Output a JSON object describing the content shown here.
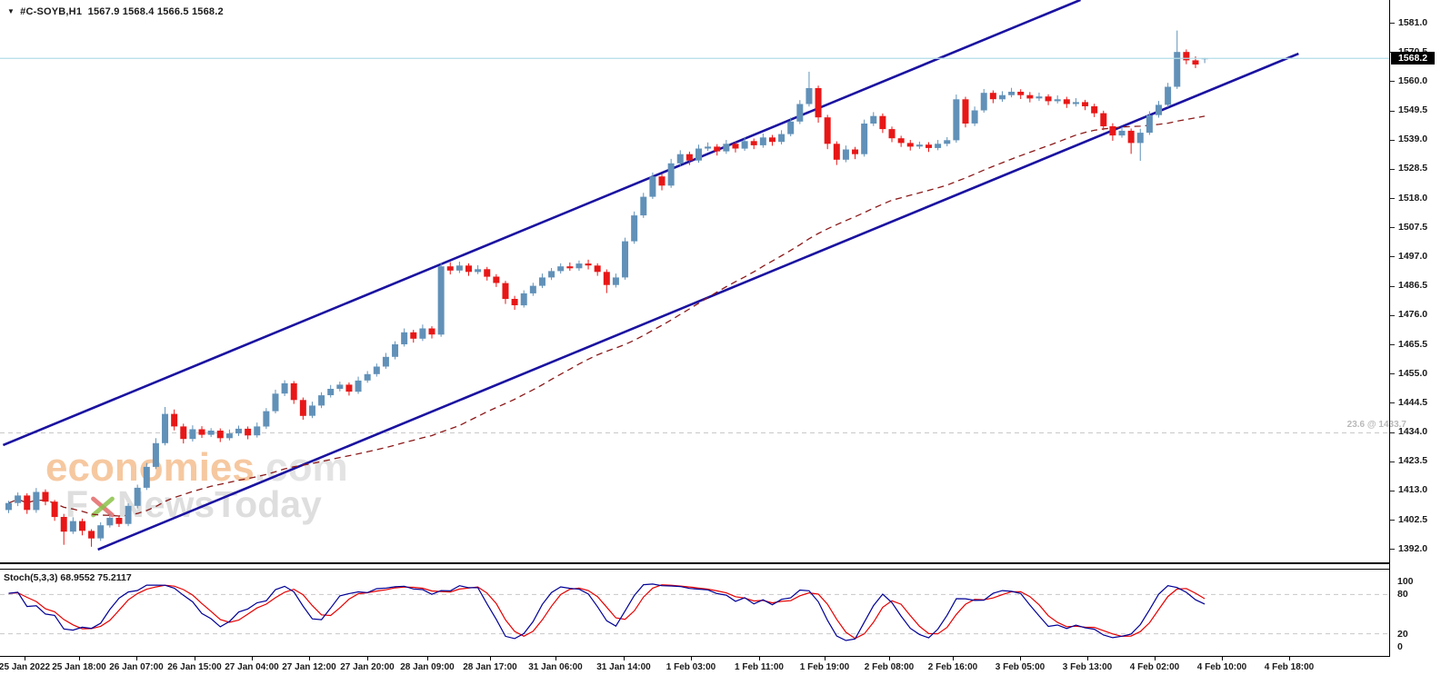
{
  "ui": {
    "quote": {
      "dropdown_icon": "▼",
      "symbol": "#C-SOYB,H1",
      "ohlc": "1567.9 1568.4 1566.5 1568.2"
    },
    "watermark": {
      "brand": "economies",
      "domain": ".com",
      "tagline_left": "F",
      "tagline_rest": "NewsToday"
    },
    "stoch_label": "Stoch(5,3,3) 68.9552 75.2117",
    "fib_label": "23.6 @ 1433.7",
    "current_price": "1568.2"
  },
  "colors": {
    "bull": "#6191b8",
    "bear": "#e81717",
    "channel": "#1a12a0",
    "ma": "#8b1a1a",
    "stoch_k": "#000096",
    "stoch_d": "#e60000",
    "current_line": "#b3dde8",
    "fib_line": "#c8c8c8",
    "axis_text": "#1a1a1a",
    "badge_bg": "#000000",
    "badge_text": "#ffffff"
  },
  "chart_data": {
    "type": "candlestick",
    "symbol": "#C-SOYB",
    "timeframe": "H1",
    "title": "#C-SOYB,H1 1567.9 1568.4 1566.5 1568.2",
    "last_quote": {
      "open": 1567.9,
      "high": 1568.4,
      "low": 1566.5,
      "close": 1568.2
    },
    "y_axis": {
      "min": 1392.0,
      "max": 1581.0,
      "tick_step": 10.5,
      "ticks": [
        1581.0,
        1570.5,
        1560.0,
        1549.5,
        1539.0,
        1528.5,
        1518.0,
        1507.5,
        1497.0,
        1486.5,
        1476.0,
        1465.5,
        1455.0,
        1444.5,
        1434.0,
        1423.5,
        1413.0,
        1402.5,
        1392.0
      ]
    },
    "x_axis": {
      "labels": [
        "25 Jan 2022",
        "25 Jan 18:00",
        "26 Jan 07:00",
        "26 Jan 15:00",
        "27 Jan 04:00",
        "27 Jan 12:00",
        "27 Jan 20:00",
        "28 Jan 09:00",
        "28 Jan 17:00",
        "31 Jan 06:00",
        "31 Jan 14:00",
        "1 Feb 03:00",
        "1 Feb 11:00",
        "1 Feb 19:00",
        "2 Feb 08:00",
        "2 Feb 16:00",
        "3 Feb 05:00",
        "3 Feb 13:00",
        "4 Feb 02:00",
        "4 Feb 10:00",
        "4 Feb 18:00"
      ]
    },
    "candles": [
      [
        1406.0,
        1409.3,
        1404.9,
        1408.5
      ],
      [
        1408.5,
        1412.3,
        1407.4,
        1411.2
      ],
      [
        1411.2,
        1412.0,
        1404.6,
        1406.0
      ],
      [
        1406.0,
        1413.9,
        1405.0,
        1412.5
      ],
      [
        1412.5,
        1413.4,
        1407.7,
        1409.0
      ],
      [
        1409.0,
        1409.6,
        1402.1,
        1403.5
      ],
      [
        1403.5,
        1404.6,
        1393.5,
        1398.2
      ],
      [
        1398.2,
        1403.4,
        1397.4,
        1402.0
      ],
      [
        1402.0,
        1402.9,
        1396.9,
        1398.5
      ],
      [
        1398.5,
        1399.1,
        1392.8,
        1395.8
      ],
      [
        1395.8,
        1401.6,
        1394.9,
        1400.5
      ],
      [
        1400.5,
        1404.6,
        1399.7,
        1403.2
      ],
      [
        1403.2,
        1404.0,
        1399.9,
        1401.0
      ],
      [
        1401.0,
        1408.4,
        1400.2,
        1407.5
      ],
      [
        1407.5,
        1415.1,
        1406.6,
        1414.0
      ],
      [
        1414.0,
        1422.9,
        1413.2,
        1421.5
      ],
      [
        1421.5,
        1431.8,
        1420.7,
        1430.0
      ],
      [
        1430.0,
        1443.0,
        1429.2,
        1440.5
      ],
      [
        1440.5,
        1442.1,
        1434.6,
        1436.0
      ],
      [
        1436.0,
        1437.0,
        1429.9,
        1431.5
      ],
      [
        1431.5,
        1436.4,
        1430.6,
        1435.0
      ],
      [
        1435.0,
        1436.1,
        1431.9,
        1433.0
      ],
      [
        1433.0,
        1435.4,
        1432.2,
        1434.5
      ],
      [
        1434.5,
        1435.3,
        1430.4,
        1431.8
      ],
      [
        1431.8,
        1434.9,
        1431.0,
        1433.5
      ],
      [
        1433.5,
        1436.3,
        1432.6,
        1435.2
      ],
      [
        1435.2,
        1436.0,
        1431.4,
        1432.8
      ],
      [
        1432.8,
        1437.4,
        1432.0,
        1436.0
      ],
      [
        1436.0,
        1442.6,
        1435.1,
        1441.5
      ],
      [
        1441.5,
        1449.2,
        1440.7,
        1447.8
      ],
      [
        1447.8,
        1452.6,
        1446.9,
        1451.5
      ],
      [
        1451.5,
        1452.3,
        1444.1,
        1445.5
      ],
      [
        1445.5,
        1446.4,
        1438.4,
        1439.8
      ],
      [
        1439.8,
        1444.9,
        1439.0,
        1443.5
      ],
      [
        1443.5,
        1448.3,
        1442.6,
        1447.2
      ],
      [
        1447.2,
        1450.9,
        1446.4,
        1449.5
      ],
      [
        1449.5,
        1452.1,
        1448.6,
        1451.0
      ],
      [
        1451.0,
        1451.8,
        1447.1,
        1448.5
      ],
      [
        1448.5,
        1453.9,
        1447.7,
        1452.5
      ],
      [
        1452.5,
        1455.9,
        1451.7,
        1454.8
      ],
      [
        1454.8,
        1458.6,
        1453.9,
        1457.5
      ],
      [
        1457.5,
        1462.4,
        1456.7,
        1461.0
      ],
      [
        1461.0,
        1466.6,
        1460.1,
        1465.5
      ],
      [
        1465.5,
        1471.2,
        1464.7,
        1469.8
      ],
      [
        1469.8,
        1470.7,
        1466.1,
        1467.5
      ],
      [
        1467.5,
        1472.6,
        1466.7,
        1471.2
      ],
      [
        1471.2,
        1472.0,
        1467.6,
        1469.0
      ],
      [
        1469.0,
        1494.8,
        1468.2,
        1493.5
      ],
      [
        1493.5,
        1495.0,
        1490.6,
        1492.0
      ],
      [
        1492.0,
        1495.2,
        1491.1,
        1493.8
      ],
      [
        1493.8,
        1494.6,
        1490.1,
        1491.5
      ],
      [
        1491.5,
        1493.9,
        1490.7,
        1492.5
      ],
      [
        1492.5,
        1493.3,
        1488.4,
        1489.8
      ],
      [
        1489.8,
        1490.7,
        1486.1,
        1487.5
      ],
      [
        1487.5,
        1488.3,
        1480.0,
        1481.8
      ],
      [
        1481.8,
        1482.9,
        1477.9,
        1479.5
      ],
      [
        1479.5,
        1484.9,
        1478.7,
        1483.8
      ],
      [
        1483.8,
        1487.6,
        1482.9,
        1486.5
      ],
      [
        1486.5,
        1490.9,
        1485.7,
        1489.5
      ],
      [
        1489.5,
        1492.9,
        1488.6,
        1491.8
      ],
      [
        1491.8,
        1494.6,
        1490.9,
        1493.5
      ],
      [
        1493.5,
        1494.9,
        1491.9,
        1492.8
      ],
      [
        1492.8,
        1495.6,
        1491.9,
        1494.5
      ],
      [
        1494.5,
        1495.9,
        1492.4,
        1493.8
      ],
      [
        1493.8,
        1494.6,
        1490.1,
        1491.5
      ],
      [
        1491.5,
        1492.4,
        1483.9,
        1486.8
      ],
      [
        1486.8,
        1490.9,
        1485.9,
        1489.5
      ],
      [
        1489.5,
        1503.8,
        1488.7,
        1502.5
      ],
      [
        1502.5,
        1513.2,
        1501.6,
        1511.8
      ],
      [
        1511.8,
        1519.9,
        1510.9,
        1518.5
      ],
      [
        1518.5,
        1527.2,
        1517.7,
        1525.8
      ],
      [
        1525.8,
        1526.7,
        1520.8,
        1522.5
      ],
      [
        1522.5,
        1532.1,
        1521.7,
        1530.5
      ],
      [
        1530.5,
        1535.2,
        1529.6,
        1533.8
      ],
      [
        1533.8,
        1534.7,
        1529.9,
        1531.5
      ],
      [
        1531.5,
        1537.2,
        1530.7,
        1535.8
      ],
      [
        1535.8,
        1538.0,
        1534.9,
        1536.5
      ],
      [
        1536.5,
        1537.4,
        1533.3,
        1534.8
      ],
      [
        1534.8,
        1538.9,
        1533.9,
        1537.5
      ],
      [
        1537.5,
        1538.3,
        1534.4,
        1535.8
      ],
      [
        1535.8,
        1539.9,
        1535.0,
        1538.5
      ],
      [
        1538.5,
        1539.4,
        1535.6,
        1537.0
      ],
      [
        1537.0,
        1541.2,
        1536.1,
        1539.8
      ],
      [
        1539.8,
        1540.7,
        1536.8,
        1538.2
      ],
      [
        1538.2,
        1542.4,
        1537.3,
        1541.0
      ],
      [
        1541.0,
        1546.9,
        1540.2,
        1545.5
      ],
      [
        1545.5,
        1553.2,
        1544.6,
        1551.8
      ],
      [
        1551.8,
        1563.4,
        1550.9,
        1557.5
      ],
      [
        1557.5,
        1558.4,
        1545.1,
        1547.0
      ],
      [
        1547.0,
        1547.9,
        1535.6,
        1537.5
      ],
      [
        1537.5,
        1538.4,
        1529.9,
        1531.8
      ],
      [
        1531.8,
        1536.9,
        1530.9,
        1535.5
      ],
      [
        1535.5,
        1536.4,
        1532.0,
        1533.8
      ],
      [
        1533.8,
        1546.2,
        1532.9,
        1544.8
      ],
      [
        1544.8,
        1548.9,
        1543.9,
        1547.5
      ],
      [
        1547.5,
        1548.4,
        1541.4,
        1542.8
      ],
      [
        1542.8,
        1543.7,
        1538.1,
        1539.5
      ],
      [
        1539.5,
        1540.4,
        1536.4,
        1537.8
      ],
      [
        1537.8,
        1538.9,
        1535.1,
        1536.5
      ],
      [
        1536.5,
        1538.3,
        1535.7,
        1537.2
      ],
      [
        1537.2,
        1538.1,
        1534.6,
        1536.0
      ],
      [
        1536.0,
        1538.9,
        1535.2,
        1537.5
      ],
      [
        1537.5,
        1539.9,
        1536.6,
        1538.8
      ],
      [
        1538.8,
        1555.2,
        1537.9,
        1553.5
      ],
      [
        1553.5,
        1554.4,
        1543.4,
        1544.8
      ],
      [
        1544.8,
        1550.9,
        1543.9,
        1549.5
      ],
      [
        1549.5,
        1557.2,
        1548.7,
        1555.8
      ],
      [
        1555.8,
        1556.7,
        1552.1,
        1553.5
      ],
      [
        1553.5,
        1556.4,
        1552.6,
        1555.0
      ],
      [
        1555.0,
        1557.6,
        1554.2,
        1556.2
      ],
      [
        1556.2,
        1557.1,
        1553.6,
        1555.0
      ],
      [
        1555.0,
        1556.1,
        1552.4,
        1553.8
      ],
      [
        1553.8,
        1555.9,
        1552.9,
        1554.5
      ],
      [
        1554.5,
        1555.3,
        1551.4,
        1552.8
      ],
      [
        1552.8,
        1554.9,
        1552.0,
        1553.5
      ],
      [
        1553.5,
        1554.4,
        1550.4,
        1551.8
      ],
      [
        1551.8,
        1553.9,
        1550.9,
        1552.5
      ],
      [
        1552.5,
        1553.3,
        1549.6,
        1551.0
      ],
      [
        1551.0,
        1551.9,
        1547.1,
        1548.5
      ],
      [
        1548.5,
        1549.4,
        1542.4,
        1543.8
      ],
      [
        1543.8,
        1544.9,
        1538.6,
        1540.5
      ],
      [
        1540.5,
        1543.6,
        1539.7,
        1542.2
      ],
      [
        1542.2,
        1543.0,
        1533.9,
        1537.8
      ],
      [
        1537.8,
        1542.9,
        1531.4,
        1541.5
      ],
      [
        1541.5,
        1549.2,
        1540.7,
        1547.8
      ],
      [
        1547.8,
        1552.9,
        1546.9,
        1551.5
      ],
      [
        1551.5,
        1559.4,
        1550.7,
        1558.0
      ],
      [
        1558.0,
        1578.2,
        1557.2,
        1570.5
      ],
      [
        1570.5,
        1571.4,
        1566.1,
        1567.5
      ],
      [
        1567.5,
        1568.9,
        1564.7,
        1566.0
      ],
      [
        1567.9,
        1568.4,
        1566.5,
        1568.2
      ]
    ],
    "overlays": {
      "channel": {
        "upper": {
          "from_bar": -0.6,
          "from_price": 1429.3,
          "to_bar": 116.5,
          "to_price": 1589.2
        },
        "lower": {
          "from_bar": 9.7,
          "from_price": 1391.8,
          "to_bar": 140.2,
          "to_price": 1569.9
        }
      },
      "ma": {
        "type": "SMA",
        "period": 50,
        "style": "dashed"
      },
      "fib_level": {
        "label": "23.6 @ 1433.7",
        "price": 1433.7
      },
      "current_price": 1568.2
    },
    "indicator": {
      "name": "Stoch",
      "params": [
        5,
        3,
        3
      ],
      "k_last": 68.9552,
      "d_last": 75.2117,
      "scale_labels": [
        "100",
        "80",
        "20",
        "0"
      ],
      "level_lines": [
        80,
        20
      ],
      "range": [
        0,
        100
      ]
    }
  }
}
